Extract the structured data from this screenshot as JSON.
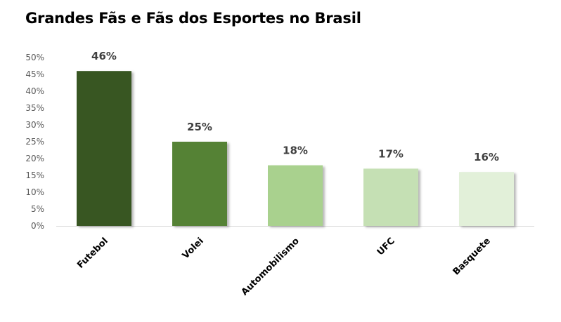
{
  "chart_data": {
    "type": "bar",
    "title": "Grandes Fãs e Fãs dos Esportes no Brasil",
    "xlabel": "",
    "ylabel": "",
    "categories": [
      "Futebol",
      "Volei",
      "Automobilismo",
      "UFC",
      "Basquete"
    ],
    "values": [
      46,
      25,
      18,
      17,
      16
    ],
    "value_labels": [
      "46%",
      "25%",
      "18%",
      "17%",
      "16%"
    ],
    "ylim": [
      0,
      50
    ],
    "y_ticks": [
      0,
      5,
      10,
      15,
      20,
      25,
      30,
      35,
      40,
      45,
      50
    ],
    "y_tick_labels": [
      "0%",
      "5%",
      "10%",
      "15%",
      "20%",
      "25%",
      "30%",
      "35%",
      "40%",
      "45%",
      "50%"
    ],
    "bar_colors": [
      "#375623",
      "#548235",
      "#a9d18e",
      "#c5e0b4",
      "#e2f0d9"
    ],
    "grid": false,
    "legend": "none"
  }
}
